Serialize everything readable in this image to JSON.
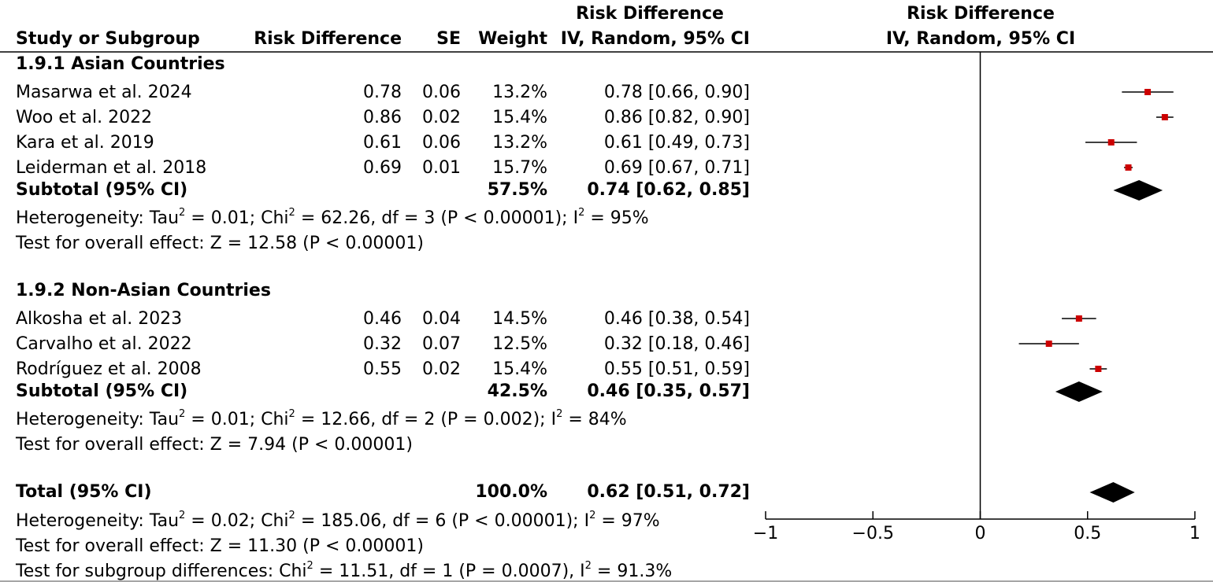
{
  "header": {
    "rd_top": "Risk Difference",
    "study_col": "Study or Subgroup",
    "rd_col": "Risk Difference",
    "se_col": "SE",
    "weight_col": "Weight",
    "ci_col": "IV, Random, 95% CI",
    "plot_top": "Risk Difference",
    "plot_sub": "IV, Random, 95% CI"
  },
  "groups": [
    {
      "title": "1.9.1 Asian Countries",
      "studies": [
        {
          "name": "Masarwa et al. 2024",
          "rd": "0.78",
          "se": "0.06",
          "weight": "13.2%",
          "ci": "0.78 [0.66, 0.90]"
        },
        {
          "name": "Woo et al. 2022",
          "rd": "0.86",
          "se": "0.02",
          "weight": "15.4%",
          "ci": "0.86 [0.82, 0.90]"
        },
        {
          "name": "Kara et al. 2019",
          "rd": "0.61",
          "se": "0.06",
          "weight": "13.2%",
          "ci": "0.61 [0.49, 0.73]"
        },
        {
          "name": "Leiderman et al. 2018",
          "rd": "0.69",
          "se": "0.01",
          "weight": "15.7%",
          "ci": "0.69 [0.67, 0.71]"
        }
      ],
      "subtotal": {
        "label": "Subtotal (95% CI)",
        "weight": "57.5%",
        "ci": "0.74 [0.62, 0.85]"
      },
      "het": {
        "p1": "Heterogeneity: Tau",
        "p2": " = 0.01; Chi",
        "p3": " = 62.26, df = 3 (P < 0.00001); I",
        "p4": " = 95%"
      },
      "test": "Test for overall effect: Z = 12.58 (P < 0.00001)"
    },
    {
      "title": "1.9.2 Non-Asian Countries",
      "studies": [
        {
          "name": "Alkosha et al. 2023",
          "rd": "0.46",
          "se": "0.04",
          "weight": "14.5%",
          "ci": "0.46 [0.38, 0.54]"
        },
        {
          "name": "Carvalho et al. 2022",
          "rd": "0.32",
          "se": "0.07",
          "weight": "12.5%",
          "ci": "0.32 [0.18, 0.46]"
        },
        {
          "name": "Rodríguez et al. 2008",
          "rd": "0.55",
          "se": "0.02",
          "weight": "15.4%",
          "ci": "0.55 [0.51, 0.59]"
        }
      ],
      "subtotal": {
        "label": "Subtotal (95% CI)",
        "weight": "42.5%",
        "ci": "0.46 [0.35, 0.57]"
      },
      "het": {
        "p1": "Heterogeneity: Tau",
        "p2": " = 0.01; Chi",
        "p3": " = 12.66, df = 2 (P = 0.002); I",
        "p4": " = 84%"
      },
      "test": "Test for overall effect: Z = 7.94 (P < 0.00001)"
    }
  ],
  "total": {
    "label": "Total (95% CI)",
    "weight": "100.0%",
    "ci": "0.62 [0.51, 0.72]",
    "het": {
      "p1": "Heterogeneity: Tau",
      "p2": " = 0.02; Chi",
      "p3": " = 185.06, df = 6 (P < 0.00001); I",
      "p4": " = 97%"
    },
    "test": "Test for overall effect: Z = 11.30 (P < 0.00001)",
    "subgroup": {
      "p1": "Test for subgroup differences: Chi",
      "p2": " = 11.51, df = 1 (P = 0.0007), I",
      "p3": " = 91.3%"
    }
  },
  "superscript": "2",
  "colors": {
    "marker": "#cc0000",
    "diamond": "#000000"
  },
  "chart_data": {
    "type": "scatter",
    "title": "Risk Difference",
    "subtitle": "IV, Random, 95% CI",
    "xlim": [
      -1,
      1
    ],
    "ticks": [
      -1,
      -0.5,
      0,
      0.5,
      1
    ],
    "tick_labels": [
      "−1",
      "−0.5",
      "0",
      "0.5",
      "1"
    ],
    "studies": [
      {
        "name": "Masarwa et al. 2024",
        "est": 0.78,
        "lo": 0.66,
        "hi": 0.9
      },
      {
        "name": "Woo et al. 2022",
        "est": 0.86,
        "lo": 0.82,
        "hi": 0.9
      },
      {
        "name": "Kara et al. 2019",
        "est": 0.61,
        "lo": 0.49,
        "hi": 0.73
      },
      {
        "name": "Leiderman et al. 2018",
        "est": 0.69,
        "lo": 0.67,
        "hi": 0.71
      },
      {
        "name": "Alkosha et al. 2023",
        "est": 0.46,
        "lo": 0.38,
        "hi": 0.54
      },
      {
        "name": "Carvalho et al. 2022",
        "est": 0.32,
        "lo": 0.18,
        "hi": 0.46
      },
      {
        "name": "Rodríguez et al. 2008",
        "est": 0.55,
        "lo": 0.51,
        "hi": 0.59
      }
    ],
    "diamonds": [
      {
        "name": "Subtotal 1.9.1",
        "est": 0.74,
        "lo": 0.62,
        "hi": 0.85
      },
      {
        "name": "Subtotal 1.9.2",
        "est": 0.46,
        "lo": 0.35,
        "hi": 0.57
      },
      {
        "name": "Total",
        "est": 0.62,
        "lo": 0.51,
        "hi": 0.72
      }
    ]
  }
}
